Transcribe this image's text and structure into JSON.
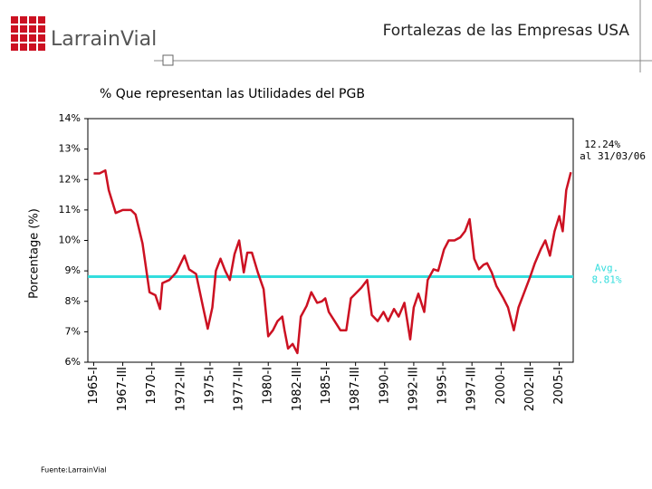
{
  "logo": "LarrainVial",
  "chart_data": {
    "type": "line",
    "title": "Fortalezas de las Empresas USA",
    "subtitle": "% Que representan las Utilidades del PGB",
    "y_label": "Porcentage (%)",
    "source": "Fuente:LarrainVial",
    "annotations": {
      "last_value": "12.24%",
      "last_date": "al 31/03/06",
      "avg_label": "Avg.",
      "avg_value": "8.81%"
    },
    "average": 8.81,
    "average_color": "#33dddd",
    "grid": false,
    "xlim": [
      1964.5,
      2006.2
    ],
    "xticks": [
      {
        "value": 1965,
        "label": "1965-I"
      },
      {
        "value": 1967.5,
        "label": "1967-III"
      },
      {
        "value": 1970,
        "label": "1970-I"
      },
      {
        "value": 1972.5,
        "label": "1972-III"
      },
      {
        "value": 1975,
        "label": "1975-I"
      },
      {
        "value": 1977.5,
        "label": "1977-III"
      },
      {
        "value": 1980,
        "label": "1980-I"
      },
      {
        "value": 1982.5,
        "label": "1982-III"
      },
      {
        "value": 1985,
        "label": "1985-I"
      },
      {
        "value": 1987.5,
        "label": "1987-III"
      },
      {
        "value": 1990,
        "label": "1990-I"
      },
      {
        "value": 1992.5,
        "label": "1992-III"
      },
      {
        "value": 1995,
        "label": "1995-I"
      },
      {
        "value": 1997.5,
        "label": "1997-III"
      },
      {
        "value": 2000,
        "label": "2000-I"
      },
      {
        "value": 2002.5,
        "label": "2002-III"
      },
      {
        "value": 2005,
        "label": "2005-I"
      }
    ],
    "ylim": [
      6,
      14
    ],
    "yticks": [
      {
        "value": 6,
        "label": "6%"
      },
      {
        "value": 7,
        "label": "7%"
      },
      {
        "value": 8,
        "label": "8%"
      },
      {
        "value": 9,
        "label": "9%"
      },
      {
        "value": 10,
        "label": "10%"
      },
      {
        "value": 11,
        "label": "11%"
      },
      {
        "value": 12,
        "label": "12%"
      },
      {
        "value": 13,
        "label": "13%"
      },
      {
        "value": 14,
        "label": "14%"
      }
    ],
    "x": [
      1965.0,
      1965.5,
      1966.0,
      1966.3,
      1966.9,
      1967.5,
      1968.2,
      1968.6,
      1969.2,
      1969.8,
      1970.3,
      1970.7,
      1970.9,
      1971.5,
      1972.1,
      1972.8,
      1973.2,
      1973.8,
      1974.4,
      1974.8,
      1975.2,
      1975.5,
      1975.9,
      1976.3,
      1976.7,
      1977.1,
      1977.5,
      1977.9,
      1978.2,
      1978.6,
      1979.1,
      1979.6,
      1980.0,
      1980.4,
      1980.8,
      1981.2,
      1981.4,
      1981.7,
      1982.1,
      1982.5,
      1982.8,
      1983.3,
      1983.7,
      1984.2,
      1984.6,
      1984.9,
      1985.2,
      1985.7,
      1986.2,
      1986.7,
      1987.1,
      1987.5,
      1988.0,
      1988.5,
      1988.9,
      1989.4,
      1989.9,
      1990.3,
      1990.8,
      1991.2,
      1991.7,
      1992.2,
      1992.5,
      1992.9,
      1993.4,
      1993.7,
      1994.2,
      1994.6,
      1995.1,
      1995.5,
      1996.0,
      1996.5,
      1996.9,
      1997.3,
      1997.7,
      1998.1,
      1998.5,
      1998.8,
      1999.2,
      1999.6,
      2000.2,
      2000.6,
      2001.1,
      2001.5,
      2002.0,
      2002.5,
      2002.9,
      2003.4,
      2003.8,
      2004.2,
      2004.6,
      2005.0,
      2005.3,
      2005.6,
      2006.0
    ],
    "series": [
      {
        "color": "#cc1122",
        "values": [
          12.2,
          12.2,
          12.3,
          11.65,
          10.9,
          11.0,
          11.0,
          10.85,
          9.9,
          8.3,
          8.2,
          7.75,
          8.6,
          8.7,
          8.95,
          9.5,
          9.05,
          8.9,
          7.8,
          7.1,
          7.8,
          9.0,
          9.4,
          9.0,
          8.7,
          9.55,
          10.0,
          8.95,
          9.6,
          9.6,
          8.95,
          8.4,
          6.85,
          7.05,
          7.35,
          7.5,
          7.05,
          6.45,
          6.6,
          6.3,
          7.5,
          7.85,
          8.3,
          7.95,
          8.0,
          8.1,
          7.65,
          7.35,
          7.05,
          7.05,
          8.1,
          8.25,
          8.45,
          8.7,
          7.55,
          7.35,
          7.65,
          7.35,
          7.75,
          7.5,
          7.95,
          6.75,
          7.8,
          8.25,
          7.65,
          8.7,
          9.05,
          9.0,
          9.7,
          10.0,
          10.0,
          10.1,
          10.3,
          10.7,
          9.4,
          9.05,
          9.2,
          9.25,
          8.95,
          8.5,
          8.1,
          7.8,
          7.05,
          7.8,
          8.3,
          8.8,
          9.25,
          9.7,
          10.0,
          9.5,
          10.3,
          10.8,
          10.3,
          11.65,
          12.24
        ]
      }
    ]
  }
}
